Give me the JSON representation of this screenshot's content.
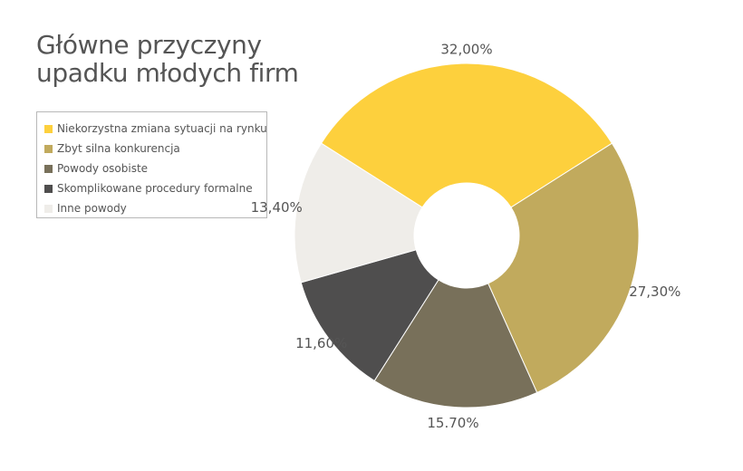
{
  "chart_data": {
    "type": "pie",
    "donut": true,
    "title_lines": [
      "Główne przyczyny",
      "upadku młodych firm"
    ],
    "legend_position": "left",
    "slices": [
      {
        "name": "Niekorzystna zmiana sytuacji na rynku",
        "value": 32.0,
        "label": "32,00%",
        "color": "#FDD03D"
      },
      {
        "name": "Zbyt silna konkurencja",
        "value": 27.3,
        "label": "27,30%",
        "color": "#C1AA5D"
      },
      {
        "name": "Powody osobiste",
        "value": 15.7,
        "label": "15.70%",
        "color": "#78705A"
      },
      {
        "name": "Skomplikowane procedury formalne",
        "value": 11.6,
        "label": "11,60%",
        "color": "#4F4E4E"
      },
      {
        "name": "Inne powody",
        "value": 13.4,
        "label": "13,40%",
        "color": "#EFEDE9"
      }
    ]
  }
}
